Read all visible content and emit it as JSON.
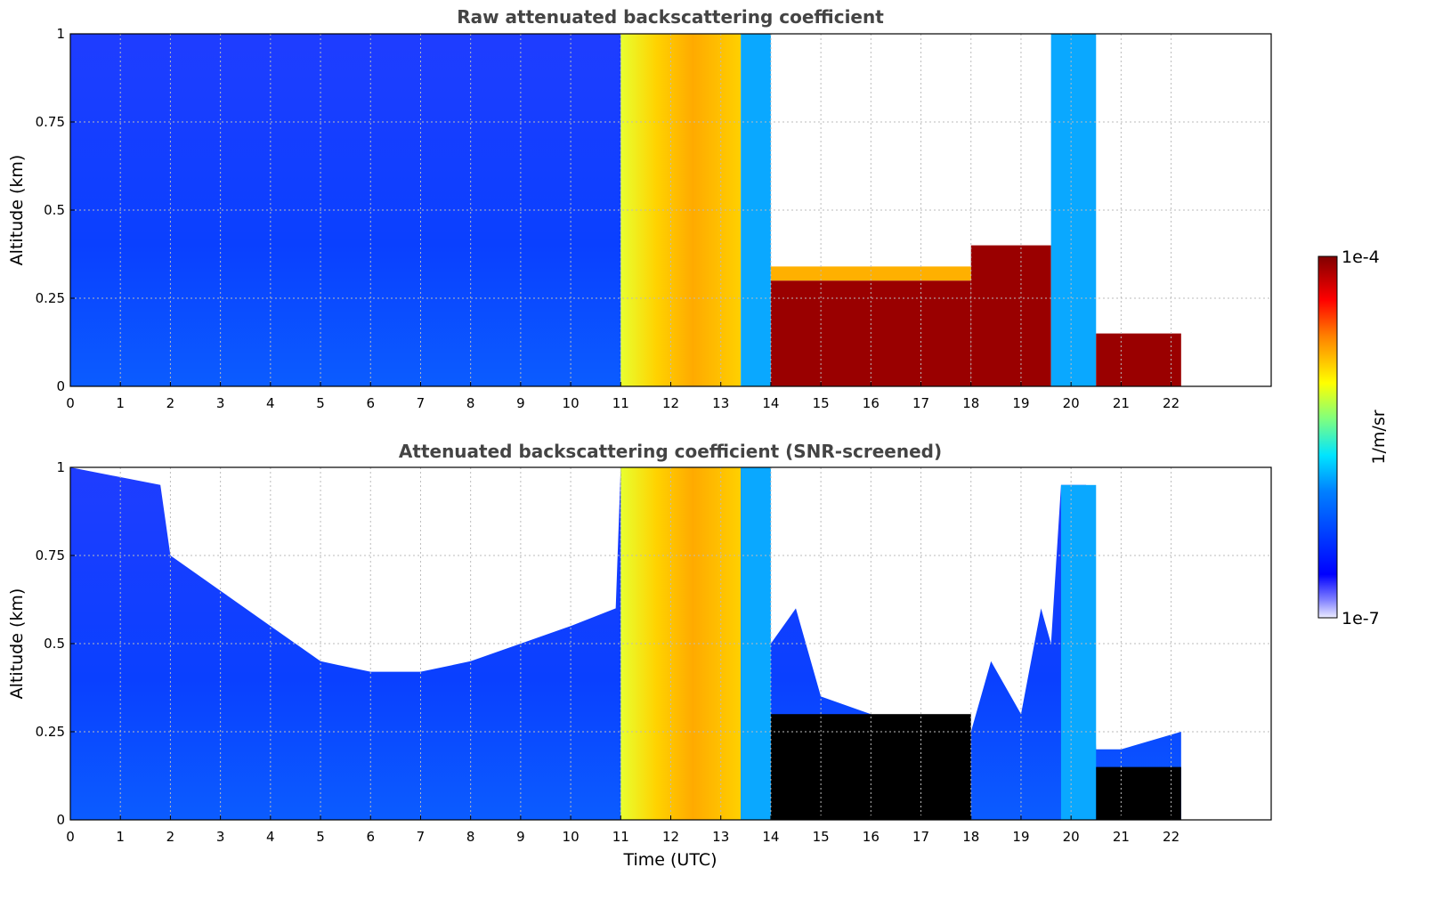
{
  "chart_data": [
    {
      "type": "heatmap",
      "title": "Raw attenuated backscattering coefficient",
      "xlabel": "",
      "ylabel": "Altitude (km)",
      "xlim": [
        0,
        24
      ],
      "ylim": [
        0,
        1
      ],
      "x_ticks": [
        "0",
        "1",
        "2",
        "3",
        "4",
        "5",
        "6",
        "7",
        "8",
        "9",
        "10",
        "11",
        "12",
        "13",
        "14",
        "15",
        "16",
        "17",
        "18",
        "19",
        "20",
        "21",
        "22"
      ],
      "y_ticks": [
        "0",
        "0.25",
        "0.5",
        "0.75",
        "1"
      ],
      "grid": true,
      "data_extent_x": [
        0,
        22.2
      ],
      "segments": [
        {
          "x": [
            0,
            11.0
          ],
          "description_level": "low",
          "top": 1.0
        },
        {
          "x": [
            11.0,
            13.4
          ],
          "description_level": "high",
          "top": 1.0
        },
        {
          "x": [
            13.4,
            14.0
          ],
          "description_level": "medium",
          "top": 1.0
        },
        {
          "x": [
            14.0,
            18.0
          ],
          "description_level": "very-high",
          "top": 0.3
        },
        {
          "x": [
            18.0,
            19.6
          ],
          "description_level": "very-high",
          "top": 0.4
        },
        {
          "x": [
            19.6,
            20.5
          ],
          "description_level": "medium",
          "top": 1.0
        },
        {
          "x": [
            20.5,
            22.2
          ],
          "description_level": "very-high",
          "top": 0.15
        }
      ]
    },
    {
      "type": "heatmap",
      "title": "Attenuated backscattering coefficient (SNR-screened)",
      "xlabel": "Time (UTC)",
      "ylabel": "Altitude (km)",
      "xlim": [
        0,
        24
      ],
      "ylim": [
        0,
        1
      ],
      "x_ticks": [
        "0",
        "1",
        "2",
        "3",
        "4",
        "5",
        "6",
        "7",
        "8",
        "9",
        "10",
        "11",
        "12",
        "13",
        "14",
        "15",
        "16",
        "17",
        "18",
        "19",
        "20",
        "21",
        "22"
      ],
      "y_ticks": [
        "0",
        "0.25",
        "0.5",
        "0.75",
        "1"
      ],
      "grid": true,
      "data_extent_x": [
        0,
        22.2
      ],
      "screened_top_profile": [
        [
          0,
          1.0
        ],
        [
          1.8,
          0.95
        ],
        [
          2.0,
          0.75
        ],
        [
          3.0,
          0.65
        ],
        [
          4.0,
          0.55
        ],
        [
          5.0,
          0.45
        ],
        [
          6.0,
          0.42
        ],
        [
          7.0,
          0.42
        ],
        [
          8.0,
          0.45
        ],
        [
          9.0,
          0.5
        ],
        [
          10.0,
          0.55
        ],
        [
          10.9,
          0.6
        ],
        [
          11.0,
          1.0
        ],
        [
          13.4,
          1.0
        ],
        [
          14.0,
          0.5
        ],
        [
          14.5,
          0.6
        ],
        [
          15.0,
          0.35
        ],
        [
          16.0,
          0.3
        ],
        [
          17.0,
          0.2
        ],
        [
          18.0,
          0.25
        ],
        [
          18.4,
          0.45
        ],
        [
          19.0,
          0.3
        ],
        [
          19.4,
          0.6
        ],
        [
          19.6,
          0.5
        ],
        [
          19.8,
          0.95
        ],
        [
          20.3,
          0.95
        ],
        [
          20.5,
          0.2
        ],
        [
          21.0,
          0.2
        ],
        [
          22.2,
          0.25
        ]
      ]
    }
  ],
  "colorbar": {
    "label": "1/m/sr",
    "max_label": "1e-4",
    "min_label": "1e-7",
    "colormap": "jet"
  }
}
